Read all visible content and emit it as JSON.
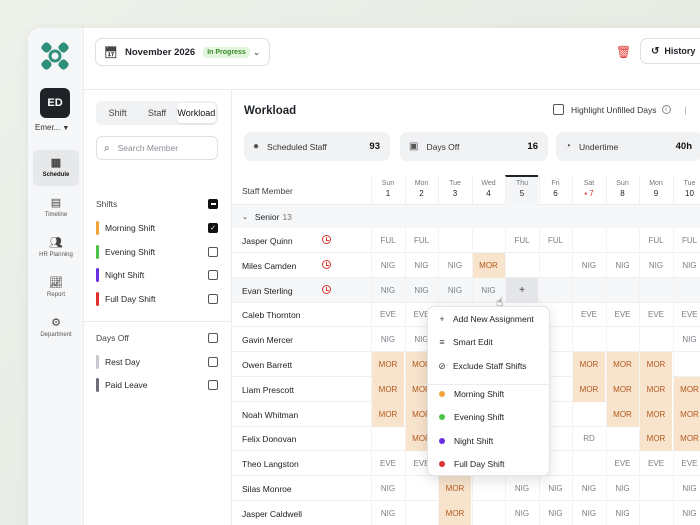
{
  "colors": {
    "accent": "#2f8f7a",
    "morning": "#f2a33a",
    "evening": "#4cc44a",
    "night": "#6a2ee0",
    "full_day": "#e0302b",
    "danger": "#e0302b"
  },
  "nav": {
    "avatar": "ED",
    "org": "Emer...",
    "items": [
      {
        "label": "Schedule",
        "icon": "calendar-icon"
      },
      {
        "label": "Timeline",
        "icon": "timeline-icon"
      },
      {
        "label": "HR Planning",
        "icon": "people-icon"
      },
      {
        "label": "Report",
        "icon": "chart-icon"
      },
      {
        "label": "Department",
        "icon": "gear-icon"
      }
    ]
  },
  "topbar": {
    "month": "November 2026",
    "status": "In Progress",
    "history_label": "History"
  },
  "filters": {
    "tabs": [
      "Shift",
      "Staff",
      "Workload"
    ],
    "search_placeholder": "Search Member",
    "shifts_label": "Shifts",
    "shifts": [
      {
        "label": "Morning Shift",
        "color": "#f2a33a",
        "checked": true
      },
      {
        "label": "Evening Shift",
        "color": "#4cc44a",
        "checked": false
      },
      {
        "label": "Night Shift",
        "color": "#6a2ee0",
        "checked": false
      },
      {
        "label": "Full Day Shift",
        "color": "#e0302b",
        "checked": false
      }
    ],
    "daysoff_label": "Days Off",
    "daysoff": [
      {
        "label": "Rest Day",
        "color": "#c5c8cc"
      },
      {
        "label": "Paid Leave",
        "color": "#6b6f75"
      }
    ]
  },
  "main": {
    "title": "Workload",
    "highlight_label": "Highlight Unfilled Days",
    "stats": [
      {
        "label": "Scheduled Staff",
        "value": "93"
      },
      {
        "label": "Days Off",
        "value": "16"
      },
      {
        "label": "Undertime",
        "value": "40h"
      }
    ],
    "staff_header": "Staff Member",
    "days": [
      {
        "dow": "Sun",
        "num": "1"
      },
      {
        "dow": "Mon",
        "num": "2"
      },
      {
        "dow": "Tue",
        "num": "3"
      },
      {
        "dow": "Wed",
        "num": "4"
      },
      {
        "dow": "Thu",
        "num": "5"
      },
      {
        "dow": "Fri",
        "num": "6"
      },
      {
        "dow": "Sat",
        "num": "7"
      },
      {
        "dow": "Sun",
        "num": "8"
      },
      {
        "dow": "Mon",
        "num": "9"
      },
      {
        "dow": "Tue",
        "num": "10"
      },
      {
        "dow": "We",
        "num": "11"
      }
    ],
    "group": {
      "label": "Senior",
      "count": "13"
    },
    "rows": [
      {
        "name": "Jasper Quinn",
        "alert": true,
        "cells": [
          "FUL",
          "FUL",
          "",
          "",
          "FUL",
          "FUL",
          "",
          "",
          "FUL",
          "FUL",
          ""
        ]
      },
      {
        "name": "Miles Camden",
        "alert": true,
        "cells": [
          "NIG",
          "NIG",
          "NIG",
          "MOR",
          "",
          "",
          "NIG",
          "NIG",
          "NIG",
          "NIG",
          ""
        ]
      },
      {
        "name": "Evan Sterling",
        "alert": true,
        "cells": [
          "NIG",
          "NIG",
          "NIG",
          "NIG",
          "+",
          "",
          "",
          "",
          "",
          "",
          ""
        ]
      },
      {
        "name": "Caleb Thornton",
        "alert": false,
        "cells": [
          "EVE",
          "EVE",
          "EVE",
          "",
          "",
          "",
          "EVE",
          "EVE",
          "EVE",
          "EVE",
          "EVE"
        ]
      },
      {
        "name": "Gavin Mercer",
        "alert": false,
        "cells": [
          "NIG",
          "NIG",
          "",
          "",
          "",
          "",
          "",
          "",
          "",
          "NIG",
          ""
        ]
      },
      {
        "name": "Owen Barrett",
        "alert": false,
        "cells": [
          "MOR",
          "MOR",
          "",
          "",
          "",
          "",
          "MOR",
          "MOR",
          "MOR",
          "",
          ""
        ]
      },
      {
        "name": "Liam Prescott",
        "alert": false,
        "cells": [
          "MOR",
          "MOR",
          "MOR",
          "",
          "",
          "",
          "MOR",
          "MOR",
          "MOR",
          "MOR",
          ""
        ]
      },
      {
        "name": "Noah Whitman",
        "alert": false,
        "cells": [
          "MOR",
          "MOR",
          "MOR",
          "",
          "",
          "",
          "",
          "MOR",
          "MOR",
          "MOR",
          "MO"
        ]
      },
      {
        "name": "Felix Donovan",
        "alert": false,
        "cells": [
          "",
          "MOR",
          "",
          "",
          "",
          "",
          "RD",
          "",
          "MOR",
          "MOR",
          "MO"
        ]
      },
      {
        "name": "Theo Langston",
        "alert": false,
        "cells": [
          "EVE",
          "EVE",
          "EVE",
          "",
          "",
          "",
          "",
          "EVE",
          "EVE",
          "EVE",
          "EVE"
        ]
      },
      {
        "name": "Silas Monroe",
        "alert": false,
        "cells": [
          "NIG",
          "",
          "MOR",
          "",
          "NIG",
          "NIG",
          "NIG",
          "NIG",
          "",
          "NIG",
          ""
        ]
      },
      {
        "name": "Jasper Caldwell",
        "alert": false,
        "cells": [
          "NIG",
          "",
          "MOR",
          "",
          "NIG",
          "NIG",
          "NIG",
          "NIG",
          "",
          "NIG",
          ""
        ]
      }
    ]
  },
  "menu": {
    "actions": [
      {
        "label": "Add New Assignment",
        "icon": "plus-icon"
      },
      {
        "label": "Smart Edit",
        "icon": "smart-edit-icon"
      },
      {
        "label": "Exclude Staff Shifts",
        "icon": "ban-icon"
      }
    ],
    "shifts": [
      {
        "label": "Morning Shift",
        "color": "#f2a33a"
      },
      {
        "label": "Evening Shift",
        "color": "#4cc44a"
      },
      {
        "label": "Night Shift",
        "color": "#6a2ee0"
      },
      {
        "label": "Full Day Shift",
        "color": "#e0302b"
      }
    ]
  }
}
